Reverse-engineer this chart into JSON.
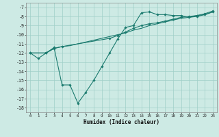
{
  "xlabel": "Humidex (Indice chaleur)",
  "background_color": "#cdeae4",
  "grid_color": "#a0cfc8",
  "line_color": "#1a7a6e",
  "xlim": [
    -0.5,
    23.5
  ],
  "ylim": [
    -18.5,
    -6.5
  ],
  "yticks": [
    -18,
    -17,
    -16,
    -15,
    -14,
    -13,
    -12,
    -11,
    -10,
    -9,
    -8,
    -7
  ],
  "xticks": [
    0,
    1,
    2,
    3,
    4,
    5,
    6,
    7,
    8,
    9,
    10,
    11,
    12,
    13,
    14,
    15,
    16,
    17,
    18,
    19,
    20,
    21,
    22,
    23
  ],
  "line1_x": [
    0,
    1,
    2,
    3,
    4,
    5,
    6,
    7,
    8,
    9,
    10,
    11,
    12,
    13,
    14,
    15,
    16,
    17,
    18,
    19,
    20,
    21,
    22,
    23
  ],
  "line1_y": [
    -12.0,
    -12.6,
    -12.0,
    -11.4,
    -15.5,
    -15.5,
    -17.5,
    -16.3,
    -15.0,
    -13.5,
    -12.0,
    -10.5,
    -9.2,
    -9.0,
    -7.6,
    -7.5,
    -7.8,
    -7.8,
    -7.9,
    -7.9,
    -8.1,
    -8.0,
    -7.8,
    -7.5
  ],
  "line2_x": [
    0,
    1,
    2,
    3,
    4,
    5,
    6,
    7,
    8,
    9,
    10,
    11,
    12,
    13,
    14,
    15,
    16,
    17,
    18,
    19,
    20,
    21,
    22,
    23
  ],
  "line2_y": [
    -12.0,
    -12.0,
    -12.0,
    -11.5,
    -11.3,
    -11.2,
    -11.0,
    -10.8,
    -10.6,
    -10.4,
    -10.2,
    -10.0,
    -9.8,
    -9.5,
    -9.3,
    -9.0,
    -8.8,
    -8.6,
    -8.4,
    -8.2,
    -8.1,
    -7.9,
    -7.8,
    -7.5
  ],
  "line3_x": [
    0,
    2,
    3,
    4,
    10,
    11,
    12,
    13,
    14,
    15,
    16,
    17,
    18,
    19,
    20,
    21,
    22,
    23
  ],
  "line3_y": [
    -12.0,
    -12.0,
    -11.5,
    -11.3,
    -10.4,
    -10.1,
    -9.7,
    -9.3,
    -9.0,
    -8.8,
    -8.7,
    -8.5,
    -8.3,
    -8.1,
    -8.0,
    -7.9,
    -7.7,
    -7.4
  ]
}
